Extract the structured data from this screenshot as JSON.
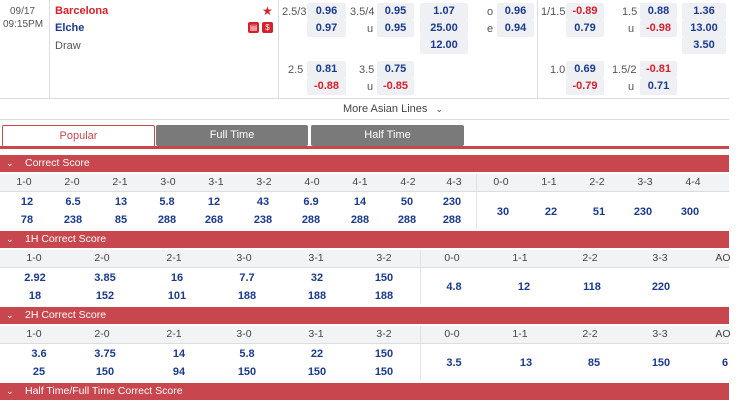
{
  "match": {
    "date": "09/17",
    "time": "09:15PM",
    "home": "Barcelona",
    "away": "Elche",
    "draw": "Draw",
    "star_icon": "star-icon",
    "badge1": "stats-icon",
    "badge2": "money-icon"
  },
  "asian": {
    "row1": {
      "hcap": "2.5/3",
      "h1": "0.96",
      "ou": "3.5/4",
      "o1": "0.95",
      "x1": "1.07",
      "olabel": "o",
      "o2": "0.96",
      "hcap2": "1/1.5",
      "h2": "-0.89",
      "ou2": "1.5",
      "o3": "0.88",
      "x2": "1.36"
    },
    "row2": {
      "h1": "0.97",
      "ulabel": "u",
      "u1": "0.95",
      "x1": "25.00",
      "elabel": "e",
      "e1": "0.94",
      "h2": "0.79",
      "ulabel2": "u",
      "u2": "-0.98",
      "x2": "13.00"
    },
    "row3": {
      "x1": "12.00",
      "x2": "3.50"
    },
    "row4": {
      "hcap": "2.5",
      "h1": "0.81",
      "ou": "3.5",
      "o1": "0.75",
      "hcap2": "1.0",
      "h2": "0.69",
      "ou2": "1.5/2",
      "o2": "-0.81"
    },
    "row5": {
      "h1": "-0.88",
      "ulabel": "u",
      "u1": "-0.85",
      "h2": "-0.79",
      "ulabel2": "u",
      "u2": "0.71"
    },
    "more": "More Asian Lines"
  },
  "tabs": {
    "popular": "Popular",
    "full": "Full Time",
    "half": "Half Time"
  },
  "correct_score": {
    "title": "Correct Score",
    "headers": [
      "1-0",
      "2-0",
      "2-1",
      "3-0",
      "3-1",
      "3-2",
      "4-0",
      "4-1",
      "4-2",
      "4-3",
      "0-0",
      "1-1",
      "2-2",
      "3-3",
      "4-4"
    ],
    "row1": [
      "12",
      "6.5",
      "13",
      "5.8",
      "12",
      "43",
      "6.9",
      "14",
      "50",
      "230",
      "30",
      "22",
      "51",
      "230",
      "300"
    ],
    "row2": [
      "78",
      "238",
      "85",
      "288",
      "268",
      "238",
      "288",
      "288",
      "288",
      "288"
    ]
  },
  "h1_correct_score": {
    "title": "1H Correct Score",
    "headers": [
      "1-0",
      "2-0",
      "2-1",
      "3-0",
      "3-1",
      "3-2",
      "0-0",
      "1-1",
      "2-2",
      "3-3",
      "AO"
    ],
    "row1": [
      "2.92",
      "3.85",
      "16",
      "7.7",
      "32",
      "150",
      "4.8",
      "12",
      "118",
      "220"
    ],
    "row2": [
      "18",
      "152",
      "101",
      "188",
      "188",
      "188"
    ]
  },
  "h2_correct_score": {
    "title": "2H Correct Score",
    "headers": [
      "1-0",
      "2-0",
      "2-1",
      "3-0",
      "3-1",
      "3-2",
      "0-0",
      "1-1",
      "2-2",
      "3-3",
      "AO"
    ],
    "row1": [
      "3.6",
      "3.75",
      "14",
      "5.8",
      "22",
      "150",
      "3.5",
      "13",
      "85",
      "150",
      "6"
    ],
    "row2": [
      "25",
      "150",
      "94",
      "150",
      "150",
      "150"
    ]
  },
  "htft": {
    "title": "Half Time/Full Time Correct Score"
  }
}
